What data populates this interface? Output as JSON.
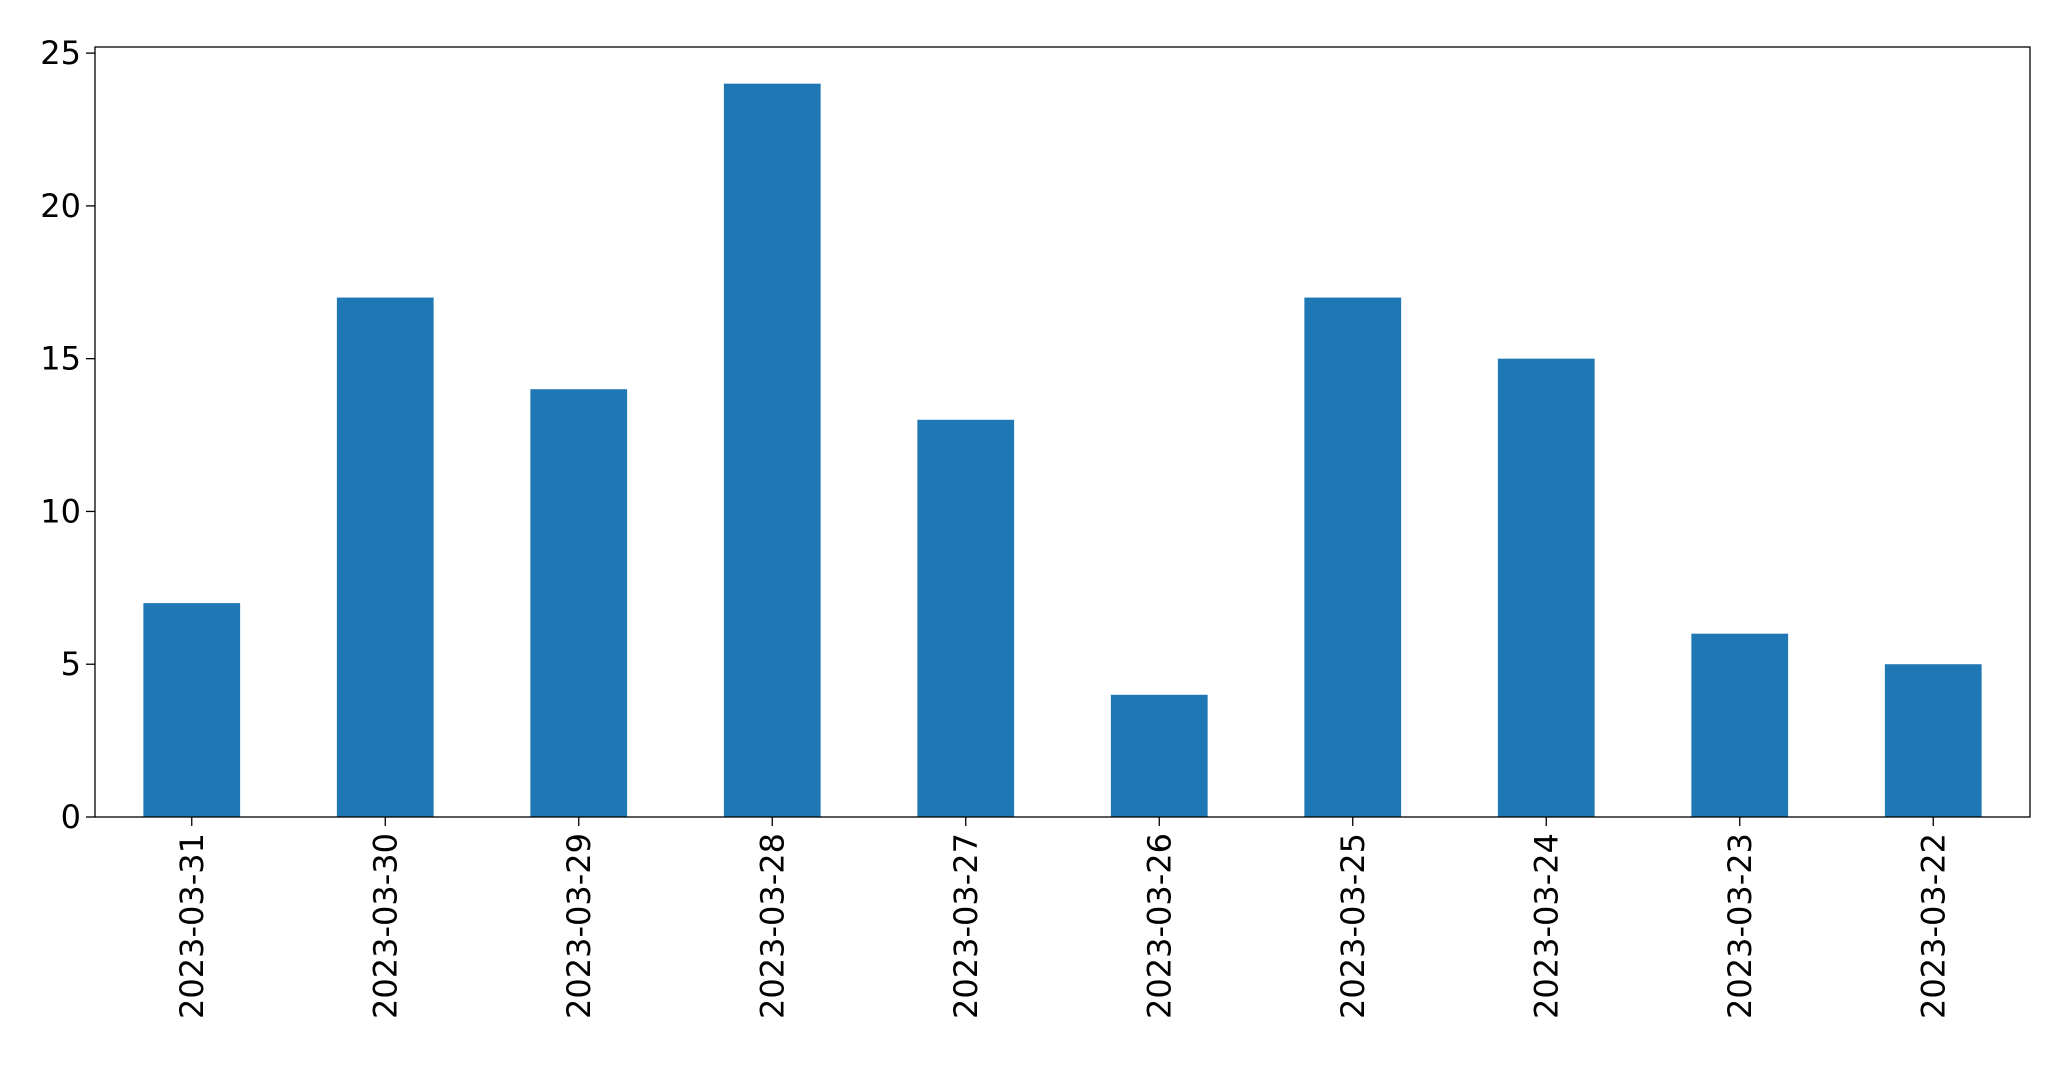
{
  "chart_data": {
    "type": "bar",
    "categories": [
      "2023-03-31",
      "2023-03-30",
      "2023-03-29",
      "2023-03-28",
      "2023-03-27",
      "2023-03-26",
      "2023-03-25",
      "2023-03-24",
      "2023-03-23",
      "2023-03-22"
    ],
    "values": [
      7,
      17,
      14,
      24,
      13,
      4,
      17,
      15,
      6,
      5
    ],
    "color": "#1f77b4",
    "ylim": [
      0,
      25.2
    ],
    "yticks": [
      0,
      5,
      10,
      15,
      20,
      25
    ],
    "grid": false
  }
}
